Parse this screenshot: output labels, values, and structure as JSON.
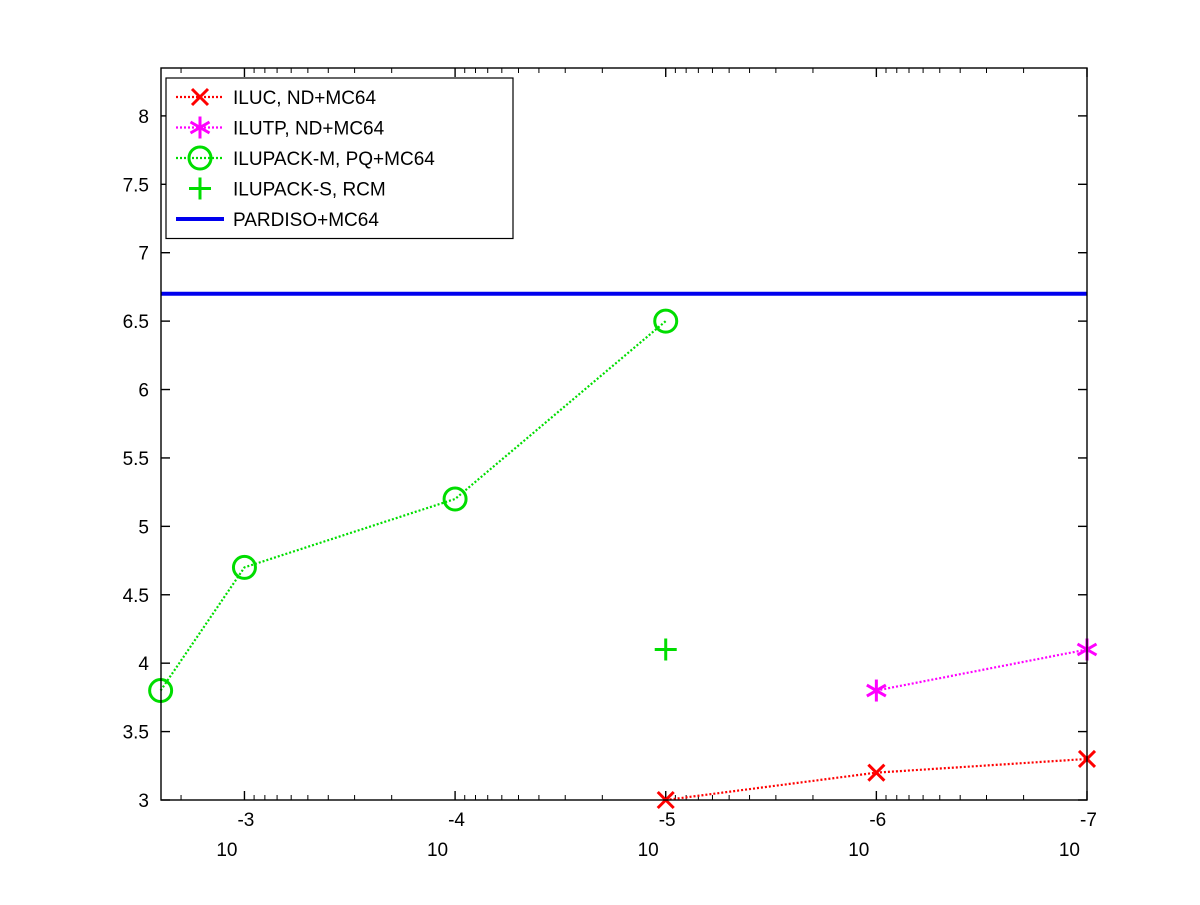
{
  "chart_data": {
    "type": "line",
    "title": "",
    "xlabel": "",
    "ylabel": "",
    "x_scale": "log-reversed",
    "xlim": [
      0.00249,
      1e-07
    ],
    "ylim": [
      3,
      8.35
    ],
    "grid": false,
    "legend_position": "top-left",
    "x_ticks": [
      {
        "value": 0.001,
        "base": "10",
        "exponent": "-3"
      },
      {
        "value": 0.0001,
        "base": "10",
        "exponent": "-4"
      },
      {
        "value": 1e-05,
        "base": "10",
        "exponent": "-5"
      },
      {
        "value": 1e-06,
        "base": "10",
        "exponent": "-6"
      },
      {
        "value": 1e-07,
        "base": "10",
        "exponent": "-7"
      }
    ],
    "y_ticks": [
      {
        "value": 3,
        "label": "3"
      },
      {
        "value": 3.5,
        "label": "3.5"
      },
      {
        "value": 4,
        "label": "4"
      },
      {
        "value": 4.5,
        "label": "4.5"
      },
      {
        "value": 5,
        "label": "5"
      },
      {
        "value": 5.5,
        "label": "5.5"
      },
      {
        "value": 6,
        "label": "6"
      },
      {
        "value": 6.5,
        "label": "6.5"
      },
      {
        "value": 7,
        "label": "7"
      },
      {
        "value": 7.5,
        "label": "7.5"
      },
      {
        "value": 8,
        "label": "8"
      }
    ],
    "series": [
      {
        "name": "ILUC,  ND+MC64",
        "color": "#ff0000",
        "marker": "x",
        "line": "dotted",
        "points": [
          {
            "x": 1e-05,
            "y": 3.0
          },
          {
            "x": 1e-06,
            "y": 3.2
          },
          {
            "x": 1e-07,
            "y": 3.3
          }
        ]
      },
      {
        "name": "ILUTP,  ND+MC64",
        "color": "#ff00ff",
        "marker": "asterisk",
        "line": "dotted",
        "points": [
          {
            "x": 1e-06,
            "y": 3.8
          },
          {
            "x": 1e-07,
            "y": 4.1
          }
        ]
      },
      {
        "name": "ILUPACK-M, PQ+MC64",
        "color": "#00dd00",
        "marker": "circle",
        "line": "dotted",
        "points": [
          {
            "x": 0.0025,
            "y": 3.8
          },
          {
            "x": 0.001,
            "y": 4.7
          },
          {
            "x": 0.0001,
            "y": 5.2
          },
          {
            "x": 1e-05,
            "y": 6.5
          }
        ]
      },
      {
        "name": "ILUPACK-S, RCM",
        "color": "#00dd00",
        "marker": "plus",
        "line": "none",
        "points": [
          {
            "x": 1e-05,
            "y": 4.1
          }
        ]
      },
      {
        "name": "PARDISO+MC64",
        "color": "#0000ee",
        "marker": "none",
        "line": "solid",
        "points": [
          {
            "x": 0.00249,
            "y": 6.7
          },
          {
            "x": 1e-07,
            "y": 6.7
          }
        ]
      }
    ]
  }
}
